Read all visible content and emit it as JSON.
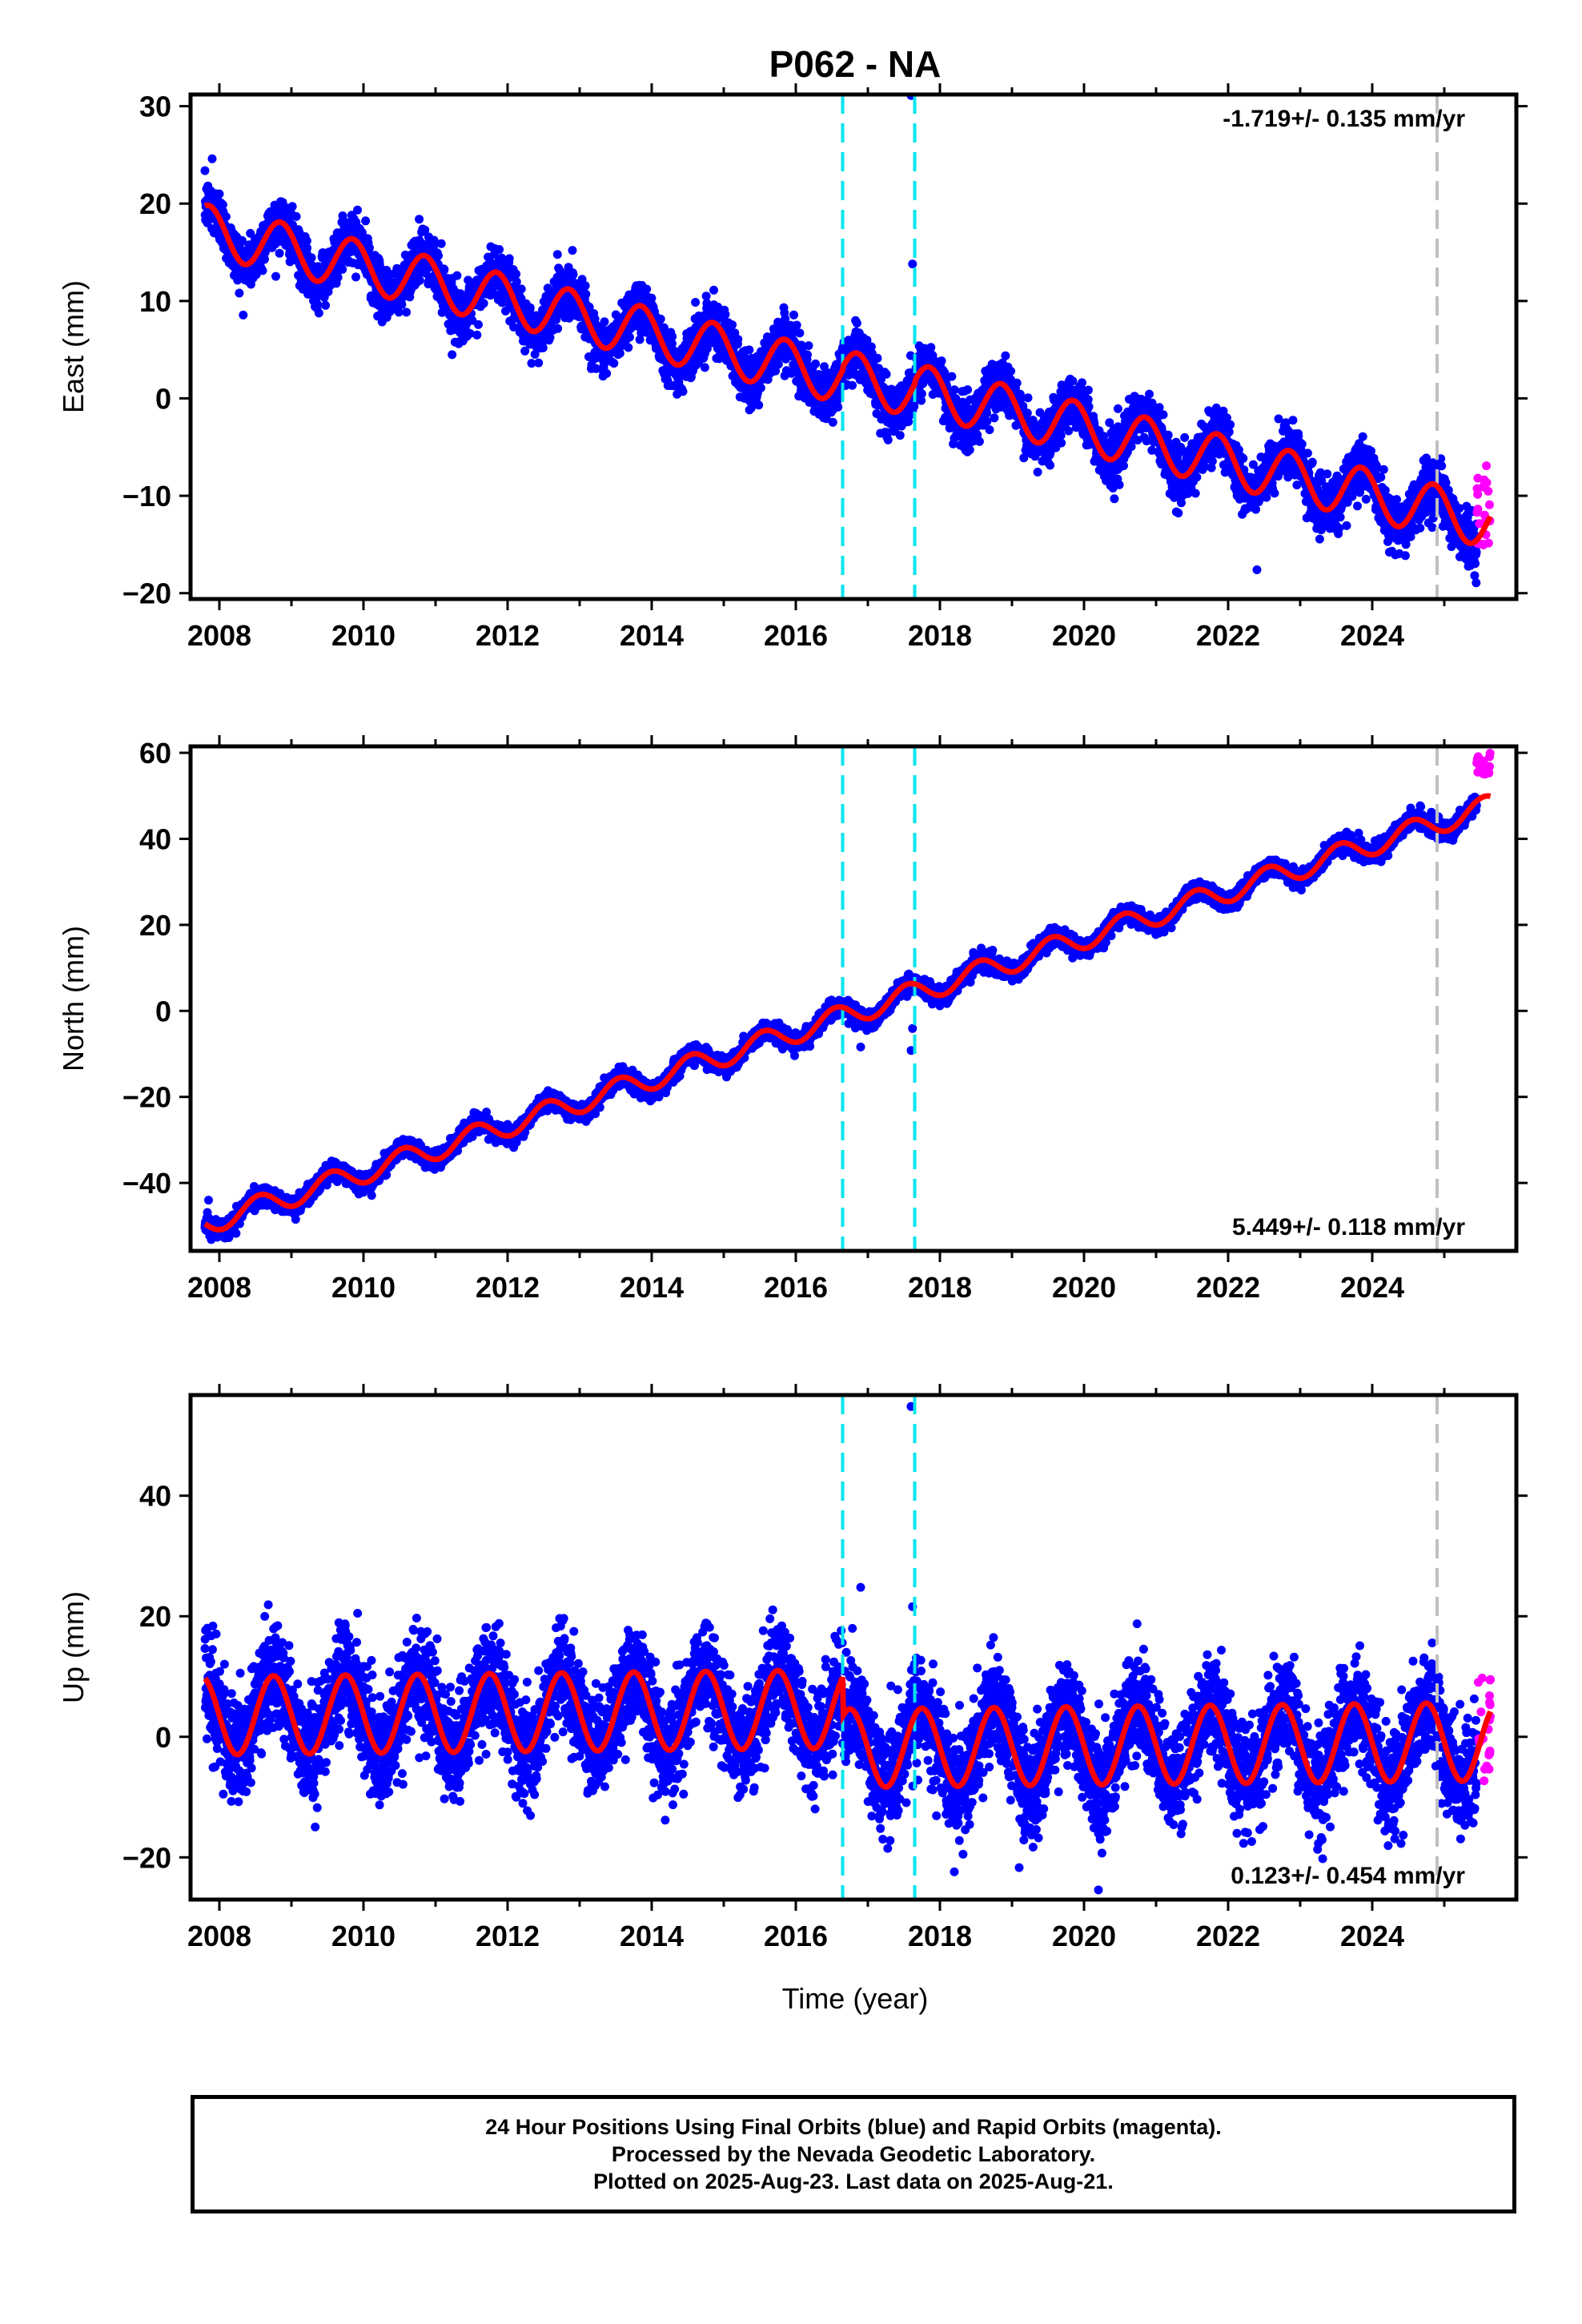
{
  "title": "P062 - NA",
  "colors": {
    "final_orbits": "#0000ff",
    "rapid_orbits": "#ff00ff",
    "model_fit": "#ff0000",
    "steps": "#00e5ee",
    "equipment_change": "#c0c0c0",
    "frame": "#000000"
  },
  "xlabel": "Time (year)",
  "footer": {
    "line1": "24 Hour Positions Using Final Orbits (blue) and Rapid Orbits (magenta).",
    "line2": "Processed by the Nevada Geodetic Laboratory.",
    "line3": "Plotted on 2025-Aug-23. Last data on 2025-Aug-21."
  },
  "chart_data": [
    {
      "type": "scatter",
      "component": "east",
      "ylabel": "East (mm)",
      "rate_text": "-1.719+/- 0.135 mm/yr",
      "rate_position": "top-right",
      "xlim": [
        2007.6,
        2026.0
      ],
      "ylim": [
        -20.6,
        31.2
      ],
      "xticks": [
        2008,
        2010,
        2012,
        2014,
        2016,
        2018,
        2020,
        2022,
        2024
      ],
      "yticks": [
        -20,
        -10,
        0,
        10,
        20,
        30
      ],
      "series": [
        {
          "name": "Final Orbits",
          "role": "daily_positions",
          "start": 2007.8,
          "end": 2025.45,
          "model": {
            "intercept": 17.3,
            "rate": -1.719,
            "amplitude": 2.6,
            "phase_year": 2008.85,
            "noise": 1.3,
            "offsets": [
              {
                "year": 2016.65,
                "delta": 0.3
              },
              {
                "year": 2017.65,
                "delta": 0.3
              }
            ]
          }
        },
        {
          "name": "Rapid Orbits",
          "role": "daily_positions",
          "start": 2025.45,
          "end": 2025.64,
          "y_range": [
            -15.6,
            -6.8
          ]
        },
        {
          "name": "Model",
          "role": "fit"
        }
      ],
      "outliers": [
        [
          2017.6,
          31.1
        ],
        [
          2017.62,
          13.8
        ],
        [
          2007.9,
          24.6
        ],
        [
          2008.0,
          21.0
        ],
        [
          2012.9,
          15.2
        ],
        [
          2022.7,
          -2.1
        ],
        [
          2022.4,
          -17.6
        ]
      ],
      "steps": [
        2016.65,
        2017.65
      ],
      "equipment_changes": [
        2024.9
      ]
    },
    {
      "type": "scatter",
      "component": "north",
      "ylabel": "North (mm)",
      "rate_text": "5.449+/- 0.118 mm/yr",
      "rate_position": "bottom-right",
      "xlim": [
        2007.6,
        2026.0
      ],
      "ylim": [
        -55.8,
        61.5
      ],
      "xticks": [
        2008,
        2010,
        2012,
        2014,
        2016,
        2018,
        2020,
        2022,
        2024
      ],
      "yticks": [
        -40,
        -20,
        0,
        20,
        40,
        60
      ],
      "series": [
        {
          "name": "Final Orbits",
          "role": "daily_positions",
          "start": 2007.8,
          "end": 2025.45,
          "model": {
            "intercept": -49.5,
            "rate": 5.449,
            "amplitude": 2.6,
            "phase_year": 2008.55,
            "noise": 1.0,
            "offsets": [
              {
                "year": 2016.65,
                "delta": 0.0
              },
              {
                "year": 2017.65,
                "delta": 0.0
              }
            ]
          }
        },
        {
          "name": "Rapid Orbits",
          "role": "daily_positions",
          "start": 2025.45,
          "end": 2025.64,
          "y_range": [
            54.2,
            60.0
          ]
        },
        {
          "name": "Model",
          "role": "fit"
        }
      ],
      "outliers": [
        [
          2017.6,
          -9.2
        ],
        [
          2017.62,
          -4.1
        ],
        [
          2016.9,
          -8.4
        ],
        [
          2007.85,
          -44.0
        ]
      ],
      "steps": [
        2016.65,
        2017.65
      ],
      "equipment_changes": [
        2024.9
      ]
    },
    {
      "type": "scatter",
      "component": "up",
      "ylabel": "Up (mm)",
      "rate_text": "0.123+/- 0.454 mm/yr",
      "rate_position": "bottom-right",
      "xlim": [
        2007.6,
        2026.0
      ],
      "ylim": [
        -27.0,
        56.7
      ],
      "xticks": [
        2008,
        2010,
        2012,
        2014,
        2016,
        2018,
        2020,
        2022,
        2024
      ],
      "yticks": [
        -20,
        0,
        20,
        40
      ],
      "series": [
        {
          "name": "Final Orbits",
          "role": "daily_positions",
          "start": 2007.8,
          "end": 2025.45,
          "model": {
            "intercept": 3.5,
            "rate": 0.123,
            "amplitude": 6.5,
            "phase_year": 2008.75,
            "noise": 4.2,
            "offsets": [
              {
                "year": 2016.65,
                "delta": -6.5
              },
              {
                "year": 2017.65,
                "delta": 0.0
              }
            ]
          }
        },
        {
          "name": "Rapid Orbits",
          "role": "daily_positions",
          "start": 2025.45,
          "end": 2025.64,
          "y_range": [
            -7.5,
            10.0
          ]
        },
        {
          "name": "Model",
          "role": "fit"
        }
      ],
      "outliers": [
        [
          2017.6,
          54.8
        ],
        [
          2016.9,
          24.8
        ],
        [
          2017.62,
          21.6
        ],
        [
          2020.2,
          -25.4
        ],
        [
          2018.2,
          -22.4
        ],
        [
          2019.1,
          -21.7
        ]
      ],
      "steps": [
        2016.65,
        2017.65
      ],
      "equipment_changes": [
        2024.9
      ]
    }
  ]
}
